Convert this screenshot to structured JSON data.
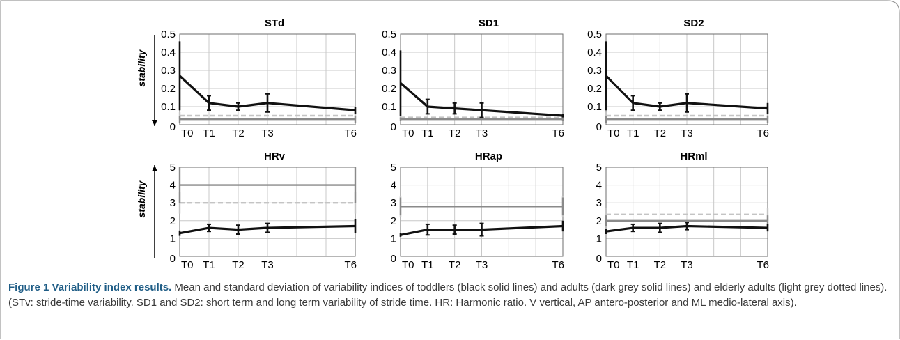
{
  "caption": {
    "title": "Figure 1 Variability index results.",
    "text": " Mean and standard deviation of variability indices of toddlers (black solid lines) and adults (dark grey solid lines) and elderly adults (light grey dotted lines). (STv: stride-time variability. SD1 and SD2: short term and long term variability of stride time. HR: Harmonic ratio. V vertical, AP antero-posterior and ML medio-lateral axis)."
  },
  "row_labels": [
    "stability",
    "stability"
  ],
  "colors": {
    "toddlers": "#111111",
    "adults": "#8a8a8a",
    "elderly": "#c4c4c4",
    "grid": "#c8c8c8",
    "caption_title": "#1f5d86"
  },
  "chart_data": [
    {
      "type": "line",
      "title": "STd",
      "categories": [
        "T0",
        "T1",
        "T2",
        "T3",
        "T6"
      ],
      "x": [
        0,
        1,
        2,
        3,
        6
      ],
      "ylim": [
        0,
        0.5
      ],
      "yticks": [
        "0",
        "0.1",
        "0.2",
        "0.3",
        "0.4",
        "0.5"
      ],
      "series": [
        {
          "values": [
            0.27,
            0.12,
            0.1,
            0.12,
            0.08
          ],
          "err": [
            0.19,
            0.04,
            0.02,
            0.05,
            0.02
          ]
        }
      ],
      "adults": {
        "value": 0.03,
        "err": 0.02
      },
      "elderly": {
        "value": 0.05,
        "err": 0.02
      }
    },
    {
      "type": "line",
      "title": "SD1",
      "categories": [
        "T0",
        "T1",
        "T2",
        "T3",
        "T6"
      ],
      "x": [
        0,
        1,
        2,
        3,
        6
      ],
      "ylim": [
        0,
        0.5
      ],
      "yticks": [
        "0",
        "0.1",
        "0.2",
        "0.3",
        "0.4",
        "0.5"
      ],
      "series": [
        {
          "values": [
            0.23,
            0.1,
            0.09,
            0.08,
            0.05
          ],
          "err": [
            0.18,
            0.04,
            0.03,
            0.04,
            0.01
          ]
        }
      ],
      "adults": {
        "value": 0.03,
        "err": 0.01
      },
      "elderly": {
        "value": 0.04,
        "err": 0.01
      }
    },
    {
      "type": "line",
      "title": "SD2",
      "categories": [
        "T0",
        "T1",
        "T2",
        "T3",
        "T6"
      ],
      "x": [
        0,
        1,
        2,
        3,
        6
      ],
      "ylim": [
        0,
        0.5
      ],
      "yticks": [
        "0",
        "0.1",
        "0.2",
        "0.3",
        "0.4",
        "0.5"
      ],
      "series": [
        {
          "values": [
            0.27,
            0.12,
            0.1,
            0.12,
            0.09
          ],
          "err": [
            0.19,
            0.04,
            0.02,
            0.05,
            0.03
          ]
        }
      ],
      "adults": {
        "value": 0.03,
        "err": 0.02
      },
      "elderly": {
        "value": 0.05,
        "err": 0.02
      }
    },
    {
      "type": "line",
      "title": "HRv",
      "categories": [
        "T0",
        "T1",
        "T2",
        "T3",
        "T6"
      ],
      "x": [
        0,
        1,
        2,
        3,
        6
      ],
      "ylim": [
        0,
        5
      ],
      "yticks": [
        "0",
        "1",
        "2",
        "3",
        "4",
        "5"
      ],
      "series": [
        {
          "values": [
            1.3,
            1.6,
            1.5,
            1.6,
            1.7
          ],
          "err": [
            0.15,
            0.2,
            0.25,
            0.25,
            0.4
          ]
        }
      ],
      "adults": {
        "value": 4.0,
        "err": 1.0
      },
      "elderly": {
        "value": 3.0,
        "err": 0.6
      }
    },
    {
      "type": "line",
      "title": "HRap",
      "categories": [
        "T0",
        "T1",
        "T2",
        "T3",
        "T6"
      ],
      "x": [
        0,
        1,
        2,
        3,
        6
      ],
      "ylim": [
        0,
        5
      ],
      "yticks": [
        "0",
        "1",
        "2",
        "3",
        "4",
        "5"
      ],
      "series": [
        {
          "values": [
            1.2,
            1.5,
            1.5,
            1.5,
            1.7
          ],
          "err": [
            0.1,
            0.3,
            0.25,
            0.35,
            0.3
          ]
        }
      ],
      "adults": {
        "value": 2.8,
        "err": 0.5
      },
      "elderly": {
        "value": 2.8,
        "err": 0.6
      }
    },
    {
      "type": "line",
      "title": "HRml",
      "categories": [
        "T0",
        "T1",
        "T2",
        "T3",
        "T6"
      ],
      "x": [
        0,
        1,
        2,
        3,
        6
      ],
      "ylim": [
        0,
        5
      ],
      "yticks": [
        "0",
        "1",
        "2",
        "3",
        "4",
        "5"
      ],
      "series": [
        {
          "values": [
            1.4,
            1.6,
            1.6,
            1.7,
            1.6
          ],
          "err": [
            0.15,
            0.2,
            0.25,
            0.2,
            0.2
          ]
        }
      ],
      "adults": {
        "value": 2.0,
        "err": 0.3
      },
      "elderly": {
        "value": 2.35,
        "err": 0.35
      }
    }
  ]
}
